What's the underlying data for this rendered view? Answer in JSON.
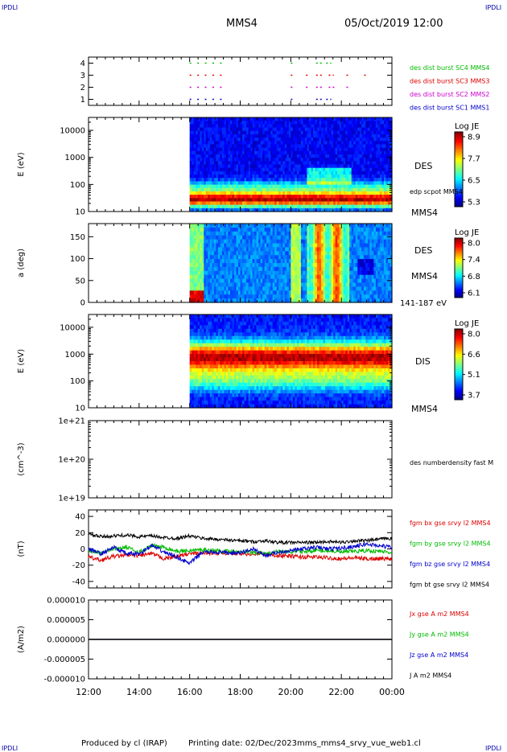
{
  "header": {
    "corner_tl": "IPDLI",
    "corner_tr": "IPDLI",
    "corner_bl": "IPDLI",
    "corner_br": "IPDLI",
    "spacecraft": "MMS4",
    "datetime": "05/Oct/2019 12:00"
  },
  "footer": {
    "producer": "Produced by cl (IRAP)",
    "printing": "Printing date: 02/Dec/2023",
    "filename": "mms_mms4_srvy_vue_web1.cl"
  },
  "chart_data": [
    {
      "id": "burst-panel",
      "type": "scatter",
      "x_ticks": [
        "12:00",
        "14:00",
        "16:00",
        "18:00",
        "20:00",
        "22:00",
        "00:00"
      ],
      "y_ticks": [
        "1",
        "2",
        "3",
        "4"
      ],
      "ylim": [
        0.5,
        4.5
      ],
      "series": [
        {
          "name": "des dist burst SC1 MMS1",
          "level": 1,
          "color": "#0000cc",
          "intervals": [
            [
              16.0,
              16.1
            ],
            [
              16.3,
              16.4
            ],
            [
              16.6,
              16.7
            ],
            [
              16.9,
              17.0
            ],
            [
              17.2,
              17.3
            ],
            [
              20.0,
              20.15
            ],
            [
              21.0,
              21.3
            ],
            [
              21.4,
              21.6
            ]
          ]
        },
        {
          "name": "des dist burst SC2 MMS2",
          "level": 2,
          "color": "#cc00cc",
          "intervals": [
            [
              16.0,
              16.1
            ],
            [
              16.3,
              16.4
            ],
            [
              16.6,
              16.7
            ],
            [
              16.9,
              17.0
            ],
            [
              17.2,
              17.3
            ],
            [
              20.0,
              20.15
            ],
            [
              20.6,
              20.7
            ],
            [
              21.0,
              21.3
            ],
            [
              21.5,
              21.8
            ],
            [
              22.2,
              22.3
            ]
          ]
        },
        {
          "name": "des dist burst SC3 MMS3",
          "level": 3,
          "color": "#dd0000",
          "intervals": [
            [
              16.0,
              16.1
            ],
            [
              16.3,
              16.4
            ],
            [
              16.6,
              16.7
            ],
            [
              16.9,
              17.0
            ],
            [
              17.2,
              17.3
            ],
            [
              20.0,
              20.15
            ],
            [
              20.6,
              20.7
            ],
            [
              21.0,
              21.3
            ],
            [
              21.5,
              21.7
            ],
            [
              22.2,
              22.3
            ],
            [
              22.9,
              23.0
            ]
          ]
        },
        {
          "name": "des dist burst SC4 MMS4",
          "level": 4,
          "color": "#00bb00",
          "intervals": [
            [
              16.0,
              16.1
            ],
            [
              16.3,
              16.4
            ],
            [
              16.6,
              16.7
            ],
            [
              16.9,
              17.0
            ],
            [
              17.2,
              17.3
            ],
            [
              20.0,
              20.15
            ],
            [
              21.0,
              21.3
            ],
            [
              21.4,
              21.6
            ]
          ]
        }
      ]
    },
    {
      "id": "des-energy",
      "type": "heatmap",
      "ylabel": "E (eV)",
      "y_scale": "log",
      "ylim": [
        10,
        30000
      ],
      "y_ticks": [
        "10",
        "100",
        "1000",
        "10000"
      ],
      "data_start": "16:00",
      "colorbar": {
        "title": "Log JE",
        "ticks": [
          "8.9",
          "7.7",
          "6.5",
          "5.3"
        ],
        "range": [
          5.3,
          8.9
        ]
      },
      "labels": [
        "DES",
        "edp scpot MMS4",
        "MMS4"
      ]
    },
    {
      "id": "des-pitch",
      "type": "heatmap",
      "ylabel": "a (deg)",
      "ylim": [
        0,
        180
      ],
      "y_ticks": [
        "0",
        "50",
        "100",
        "150"
      ],
      "data_start": "16:00",
      "colorbar": {
        "title": "Log JE",
        "ticks": [
          "8.0",
          "7.4",
          "6.8",
          "6.1"
        ],
        "range": [
          6.1,
          8.0
        ]
      },
      "labels": [
        "DES",
        "MMS4",
        "141-187 eV"
      ]
    },
    {
      "id": "dis-energy",
      "type": "heatmap",
      "ylabel": "E (eV)",
      "y_scale": "log",
      "ylim": [
        10,
        30000
      ],
      "y_ticks": [
        "10",
        "100",
        "1000",
        "10000"
      ],
      "data_start": "16:00",
      "colorbar": {
        "title": "Log JE",
        "ticks": [
          "8.0",
          "6.6",
          "5.1",
          "3.7"
        ],
        "range": [
          3.7,
          8.0
        ]
      },
      "labels": [
        "DIS",
        "MMS4"
      ]
    },
    {
      "id": "density",
      "type": "line",
      "ylabel": "(cm^-3)",
      "y_scale": "log",
      "ylim": [
        1e+19,
        1e+21
      ],
      "y_ticks": [
        "1e+21",
        "1e+20",
        "1e+19"
      ],
      "series": [
        {
          "name": "des numberdensity fast M",
          "values": []
        }
      ]
    },
    {
      "id": "fgm",
      "type": "line",
      "ylabel": "(nT)",
      "ylim": [
        -48,
        48
      ],
      "y_ticks": [
        "40",
        "20",
        "0",
        "-20",
        "-40"
      ],
      "data_start": "12:00",
      "series": [
        {
          "name": "fgm bx gse srvy l2 MMS4",
          "color": "#dd0000",
          "values": [
            -10,
            -14,
            -9,
            -8,
            -8,
            -6,
            -12,
            -9,
            -6,
            -5,
            -5,
            -5,
            -6,
            -6,
            -7,
            -8,
            -9,
            -10,
            -10,
            -11,
            -12,
            -11,
            -12,
            -12,
            -12
          ]
        },
        {
          "name": "fgm by gse srvy l2 MMS4",
          "color": "#00bb00",
          "values": [
            -2,
            -4,
            0,
            2,
            -4,
            4,
            2,
            -3,
            -2,
            -1,
            -2,
            -3,
            -3,
            -4,
            -6,
            -3,
            -4,
            -3,
            -2,
            -2,
            -4,
            -3,
            -2,
            -3,
            -4
          ]
        },
        {
          "name": "fgm bz gse srvy l2 MMS4",
          "color": "#0000cc",
          "values": [
            0,
            -6,
            2,
            -6,
            -6,
            4,
            -4,
            -10,
            -18,
            -4,
            -4,
            -5,
            -5,
            0,
            -8,
            -4,
            -2,
            0,
            2,
            0,
            1,
            3,
            6,
            4,
            2
          ]
        },
        {
          "name": "fgm bt gse srvy l2 MMS4",
          "color": "#000000",
          "values": [
            18,
            15,
            16,
            17,
            15,
            16,
            14,
            13,
            16,
            13,
            12,
            11,
            10,
            9,
            10,
            8,
            8,
            8,
            8,
            9,
            8,
            10,
            10,
            12,
            13
          ]
        }
      ]
    },
    {
      "id": "current",
      "type": "line",
      "ylabel": "(A/m2)",
      "ylim": [
        -1e-05,
        1e-05
      ],
      "y_ticks": [
        "0.000010",
        "0.000005",
        "0.000000",
        "-0.000005",
        "-0.000010"
      ],
      "series": [
        {
          "name": "Jx gse A m2 MMS4",
          "color": "#dd0000",
          "values": [
            0,
            0
          ]
        },
        {
          "name": "Jy gse A m2 MMS4",
          "color": "#00bb00",
          "values": [
            0,
            0
          ]
        },
        {
          "name": "Jz gse A m2 MMS4",
          "color": "#0000cc",
          "values": [
            0,
            0
          ]
        },
        {
          "name": "J A m2 MMS4",
          "color": "#000000",
          "values": [
            0,
            0
          ]
        }
      ]
    }
  ]
}
